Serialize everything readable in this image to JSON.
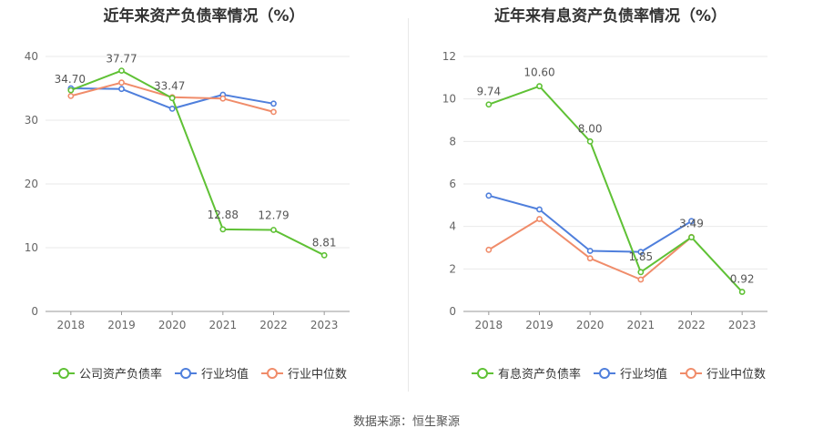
{
  "chart_data": [
    {
      "type": "line",
      "title": "近年来资产负债率情况（%）",
      "categories": [
        "2018",
        "2019",
        "2020",
        "2021",
        "2022",
        "2023"
      ],
      "ylim": [
        0,
        40
      ],
      "yticks": [
        0,
        10,
        20,
        30,
        40
      ],
      "grid": true,
      "legend_position": "bottom",
      "series": [
        {
          "name": "公司资产负债率",
          "color": "#5fc135",
          "values": [
            34.7,
            37.77,
            33.47,
            12.88,
            12.79,
            8.81
          ],
          "labels": [
            "34.70",
            "37.77",
            "33.47",
            "12.88",
            "12.79",
            "8.81"
          ]
        },
        {
          "name": "行业均值",
          "color": "#4f7fdc",
          "values": [
            35.0,
            34.9,
            31.8,
            34.0,
            32.6,
            null
          ]
        },
        {
          "name": "行业中位数",
          "color": "#f08c6a",
          "values": [
            33.8,
            35.9,
            33.6,
            33.4,
            31.3,
            null
          ]
        }
      ]
    },
    {
      "type": "line",
      "title": "近年来有息资产负债率情况（%）",
      "categories": [
        "2018",
        "2019",
        "2020",
        "2021",
        "2022",
        "2023"
      ],
      "ylim": [
        0,
        12
      ],
      "yticks": [
        0,
        2,
        4,
        6,
        8,
        10,
        12
      ],
      "grid": true,
      "legend_position": "bottom",
      "series": [
        {
          "name": "有息资产负债率",
          "color": "#5fc135",
          "values": [
            9.74,
            10.6,
            8.0,
            1.85,
            3.49,
            0.92
          ],
          "labels": [
            "9.74",
            "10.60",
            "8.00",
            "1.85",
            "3.49",
            "0.92"
          ]
        },
        {
          "name": "行业均值",
          "color": "#4f7fdc",
          "values": [
            5.45,
            4.8,
            2.85,
            2.8,
            4.25,
            null
          ]
        },
        {
          "name": "行业中位数",
          "color": "#f08c6a",
          "values": [
            2.9,
            4.35,
            2.5,
            1.5,
            3.5,
            null
          ]
        }
      ]
    }
  ],
  "source": "数据来源：恒生聚源"
}
